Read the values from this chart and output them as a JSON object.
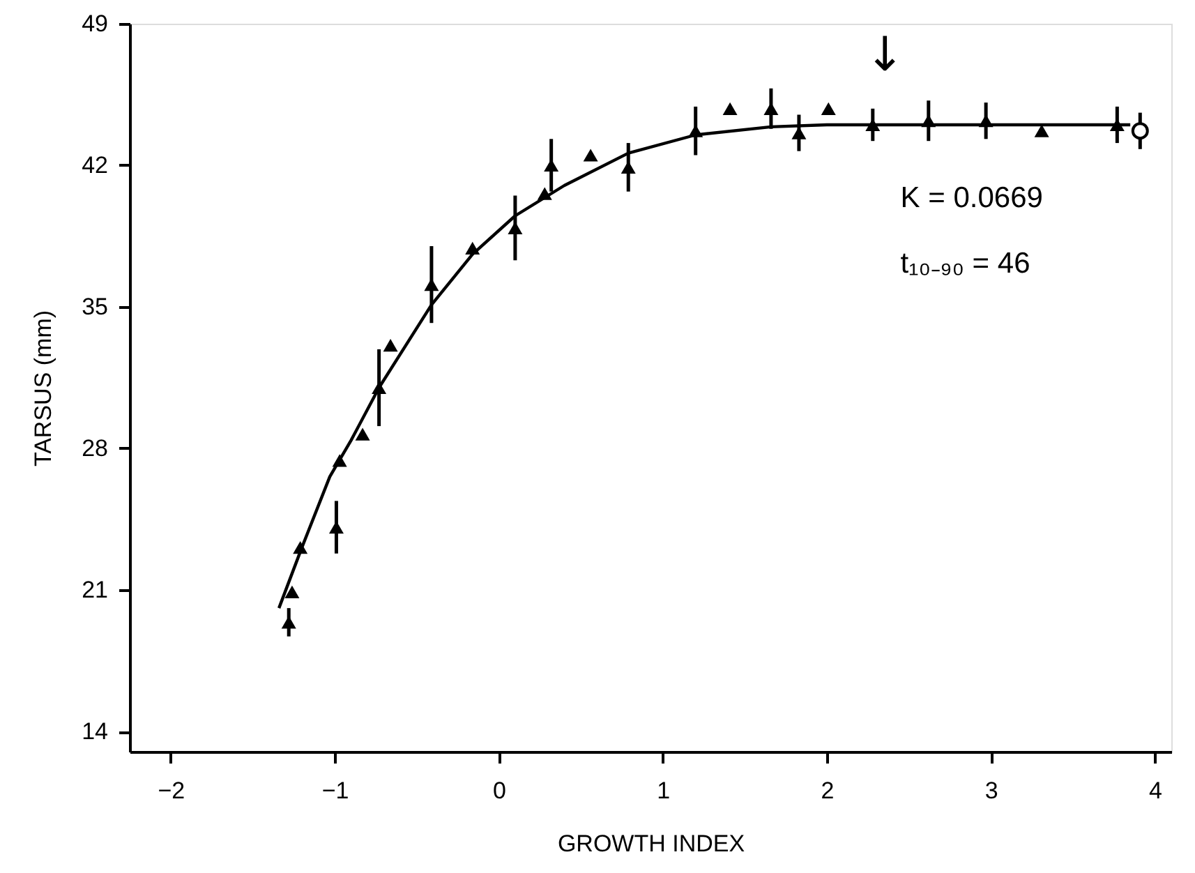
{
  "chart_data": {
    "type": "scatter",
    "xlabel": "GROWTH INDEX",
    "ylabel": "TARSUS  (mm)",
    "xlim": [
      -2.25,
      4.1
    ],
    "xticks": [
      -2,
      -1,
      0,
      1,
      2,
      3,
      4
    ],
    "ylim": [
      13,
      49
    ],
    "yticks": [
      14,
      21,
      28,
      35,
      42,
      49
    ],
    "grid": false,
    "series": [
      {
        "type": "line",
        "color": "#000000",
        "marker": "none",
        "line_style": "solid",
        "x": [
          -1.34,
          -1.2,
          -1.03,
          -0.9,
          -0.73,
          -0.41,
          -0.16,
          0.1,
          0.4,
          0.79,
          1.2,
          1.66,
          2.0,
          3.85
        ],
        "values": [
          20.1,
          23.1,
          26.6,
          28.4,
          31.0,
          35.1,
          37.6,
          39.5,
          41.0,
          42.6,
          43.5,
          43.9,
          44.0,
          44.0
        ]
      },
      {
        "color": "#000000",
        "marker": "triangle",
        "x": [
          -1.28,
          -1.26,
          -1.21,
          -0.99,
          -0.97,
          -0.83,
          -0.73,
          -0.66,
          -0.41,
          -0.16,
          0.1,
          0.28,
          0.32,
          0.56,
          0.79,
          1.2,
          1.41,
          1.66,
          1.83,
          2.01,
          2.28,
          2.62,
          2.97,
          3.31,
          3.77
        ],
        "values": [
          19.4,
          20.9,
          23.1,
          24.1,
          27.4,
          28.7,
          31.0,
          33.1,
          36.1,
          37.9,
          38.9,
          40.6,
          42.0,
          42.5,
          41.9,
          43.7,
          44.8,
          44.8,
          43.6,
          44.8,
          44.0,
          44.2,
          44.2,
          43.7,
          44.0
        ],
        "errors": [
          0.7,
          null,
          null,
          1.3,
          null,
          null,
          1.9,
          null,
          1.9,
          null,
          1.6,
          null,
          1.3,
          null,
          1.2,
          1.2,
          null,
          1.0,
          0.9,
          null,
          0.8,
          1.0,
          0.9,
          null,
          0.9
        ]
      },
      {
        "color": "#000000",
        "marker": "circle",
        "x": [
          3.91
        ],
        "values": [
          43.7
        ],
        "errors": [
          0.9
        ]
      }
    ],
    "annotations": [
      "K = 0.0669",
      "t₁₀₋₉₀ = 46",
      "↓"
    ]
  }
}
